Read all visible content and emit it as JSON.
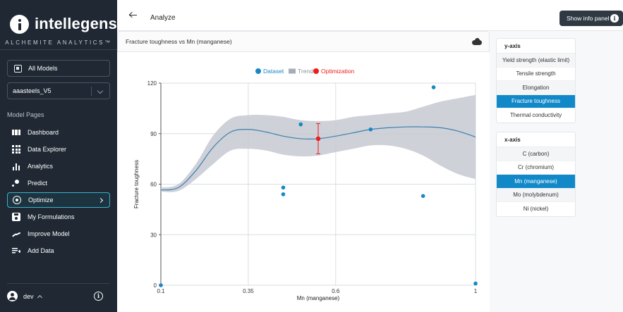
{
  "sidebar": {
    "brand": "intellegens",
    "tagline": "ALCHEMITE ANALYTICS™",
    "all_models_label": "All Models",
    "model_select_value": "aaasteels_V5",
    "section_label": "Model Pages",
    "nav": [
      {
        "label": "Dashboard",
        "icon": "dashboard-icon"
      },
      {
        "label": "Data Explorer",
        "icon": "grid-icon"
      },
      {
        "label": "Analytics",
        "icon": "bar-chart-icon"
      },
      {
        "label": "Predict",
        "icon": "predict-icon"
      },
      {
        "label": "Optimize",
        "icon": "target-icon",
        "active": true
      },
      {
        "label": "My Formulations",
        "icon": "save-icon"
      },
      {
        "label": "Improve Model",
        "icon": "trend-icon"
      },
      {
        "label": "Add Data",
        "icon": "add-data-icon"
      }
    ],
    "user_name": "dev"
  },
  "topbar": {
    "title": "Analyze",
    "info_button_label": "Show info panel"
  },
  "panel": {
    "title": "Fracture toughness vs Mn (manganese)"
  },
  "y_axis_panel": {
    "heading": "y-axis",
    "options": [
      "Yield strength (elastic limit)",
      "Tensile strength",
      "Elongation",
      "Fracture toughness",
      "Thermal conductivity"
    ],
    "selected": "Fracture toughness"
  },
  "x_axis_panel": {
    "heading": "x-axis",
    "options": [
      "C (carbon)",
      "Cr (chromium)",
      "Mn (manganese)",
      "Mo (molybdenum)",
      "Ni (nickel)"
    ],
    "selected": "Mn (manganese)"
  },
  "colors": {
    "dataset": "#1a87c4",
    "trend_line": "#3d7fb0",
    "trend_band": "#c5c9d1",
    "optimization": "#ee1c1c",
    "selected_option": "#1189c8",
    "sidebar_bg": "#1f2833"
  },
  "chart_data": {
    "type": "scatter",
    "xlabel": "Mn (manganese)",
    "ylabel": "Fracture toughness",
    "xlim": [
      0.1,
      1
    ],
    "ylim": [
      0,
      120
    ],
    "x_ticks": [
      0.1,
      0.35,
      0.6,
      1
    ],
    "y_ticks": [
      0,
      30,
      60,
      90,
      120
    ],
    "grid": true,
    "legend": {
      "position": "top-center",
      "entries": [
        "Dataset",
        "Trend",
        "Optimization"
      ]
    },
    "dataset": [
      {
        "x": 0.1,
        "y": 0
      },
      {
        "x": 0.45,
        "y": 58
      },
      {
        "x": 0.45,
        "y": 54
      },
      {
        "x": 0.5,
        "y": 95.5
      },
      {
        "x": 0.7,
        "y": 92.5
      },
      {
        "x": 0.85,
        "y": 53
      },
      {
        "x": 0.88,
        "y": 117.5
      },
      {
        "x": 1.0,
        "y": 1
      }
    ],
    "trend": {
      "x": [
        0.1,
        0.15,
        0.2,
        0.25,
        0.3,
        0.35,
        0.4,
        0.45,
        0.5,
        0.55,
        0.6,
        0.65,
        0.7,
        0.75,
        0.8,
        0.85,
        0.9,
        0.95,
        1.0
      ],
      "mean": [
        56.5,
        58,
        68,
        82,
        91,
        92.5,
        91,
        88.5,
        87,
        87,
        88.5,
        90.5,
        92.5,
        93.5,
        94,
        94,
        93.5,
        91.5,
        88
      ],
      "lower": [
        55.5,
        56,
        63,
        72,
        80,
        81,
        80,
        77.5,
        76.5,
        77,
        79,
        81,
        83,
        83,
        81,
        77,
        71,
        66,
        63
      ],
      "upper": [
        58,
        60,
        72,
        89,
        99,
        101,
        101,
        100,
        98,
        97.5,
        98,
        100,
        101,
        102,
        103,
        106,
        109,
        111,
        113
      ]
    },
    "optimization": {
      "x": 0.55,
      "y": 87,
      "error": [
        78,
        96
      ]
    }
  }
}
